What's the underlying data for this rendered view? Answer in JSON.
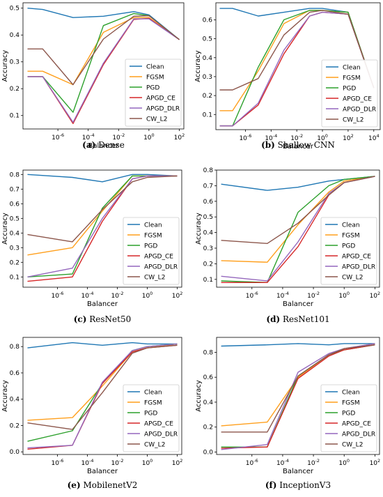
{
  "colors": {
    "Clean": "#1f77b4",
    "FGSM": "#ff9f1c",
    "PGD": "#2ca02c",
    "APGD_CE": "#d62728",
    "APGD_DLR": "#9467bd",
    "CW_L2": "#8c564b"
  },
  "chart_data": [
    {
      "type": "line",
      "caption_letter": "(a)",
      "caption_name": "Dense",
      "xlabel": "Balancer",
      "ylabel": "Accuracy",
      "x_scale": "log",
      "x": [
        1e-08,
        1e-07,
        1e-05,
        0.001,
        0.1,
        1.0,
        100.0
      ],
      "x_ticks": [
        "10^-6",
        "10^-4",
        "10^-2",
        "10^0",
        "10^2"
      ],
      "y_ticks": [
        "0.1",
        "0.2",
        "0.3",
        "0.4",
        "0.5"
      ],
      "ylim": [
        0.05,
        0.52
      ],
      "legend_position": "lower right",
      "series": [
        {
          "name": "Clean",
          "values": [
            0.5,
            0.495,
            0.465,
            0.47,
            0.487,
            0.475,
            0.383
          ]
        },
        {
          "name": "FGSM",
          "values": [
            0.265,
            0.265,
            0.215,
            0.41,
            0.465,
            0.465,
            0.383
          ]
        },
        {
          "name": "PGD",
          "values": [
            0.245,
            0.245,
            0.112,
            0.435,
            0.48,
            0.472,
            0.383
          ]
        },
        {
          "name": "APGD_CE",
          "values": [
            0.245,
            0.245,
            0.07,
            0.29,
            0.458,
            0.462,
            0.383
          ]
        },
        {
          "name": "APGD_DLR",
          "values": [
            0.245,
            0.245,
            0.075,
            0.295,
            0.46,
            0.46,
            0.383
          ]
        },
        {
          "name": "CW_L2",
          "values": [
            0.348,
            0.348,
            0.215,
            0.385,
            0.47,
            0.472,
            0.383
          ]
        }
      ]
    },
    {
      "type": "line",
      "caption_letter": "(b)",
      "caption_name": "Shallow CNN",
      "xlabel": "Balancer",
      "ylabel": "Accuracy",
      "x_scale": "log",
      "x": [
        1e-08,
        1e-07,
        1e-05,
        0.001,
        0.1,
        1.0,
        100.0,
        10000.0
      ],
      "x_ticks": [
        "10^-6",
        "10^-4",
        "10^-2",
        "10^0",
        "10^2",
        "10^4"
      ],
      "y_ticks": [
        "0.1",
        "0.2",
        "0.3",
        "0.4",
        "0.5",
        "0.6"
      ],
      "ylim": [
        0.02,
        0.69
      ],
      "legend_position": "lower right",
      "series": [
        {
          "name": "Clean",
          "values": [
            0.66,
            0.66,
            0.62,
            0.64,
            0.66,
            0.66,
            0.64,
            0.24
          ]
        },
        {
          "name": "FGSM",
          "values": [
            0.12,
            0.12,
            0.33,
            0.58,
            0.65,
            0.65,
            0.64,
            0.24
          ]
        },
        {
          "name": "PGD",
          "values": [
            0.04,
            0.04,
            0.35,
            0.6,
            0.65,
            0.65,
            0.64,
            0.24
          ]
        },
        {
          "name": "APGD_CE",
          "values": [
            0.04,
            0.04,
            0.15,
            0.42,
            0.62,
            0.64,
            0.63,
            0.24
          ]
        },
        {
          "name": "APGD_DLR",
          "values": [
            0.04,
            0.04,
            0.16,
            0.44,
            0.62,
            0.64,
            0.63,
            0.24
          ]
        },
        {
          "name": "CW_L2",
          "values": [
            0.23,
            0.23,
            0.29,
            0.52,
            0.64,
            0.65,
            0.63,
            0.24
          ]
        }
      ]
    },
    {
      "type": "line",
      "caption_letter": "(c)",
      "caption_name": "ResNet50",
      "xlabel": "Balancer",
      "ylabel": "Accuracy",
      "x_scale": "log",
      "x": [
        1e-08,
        1e-05,
        0.001,
        0.1,
        1.0,
        100.0
      ],
      "x_ticks": [
        "10^-6",
        "10^-4",
        "10^-2",
        "10^0",
        "10^2"
      ],
      "y_ticks": [
        "0.1",
        "0.2",
        "0.3",
        "0.4",
        "0.5",
        "0.6",
        "0.7",
        "0.8"
      ],
      "ylim": [
        0.03,
        0.83
      ],
      "legend_position": "lower right",
      "series": [
        {
          "name": "Clean",
          "values": [
            0.8,
            0.78,
            0.75,
            0.8,
            0.8,
            0.79
          ]
        },
        {
          "name": "FGSM",
          "values": [
            0.25,
            0.3,
            0.55,
            0.79,
            0.79,
            0.79
          ]
        },
        {
          "name": "PGD",
          "values": [
            0.1,
            0.12,
            0.57,
            0.79,
            0.79,
            0.79
          ]
        },
        {
          "name": "APGD_CE",
          "values": [
            0.07,
            0.1,
            0.48,
            0.77,
            0.79,
            0.79
          ]
        },
        {
          "name": "APGD_DLR",
          "values": [
            0.1,
            0.16,
            0.5,
            0.77,
            0.79,
            0.79
          ]
        },
        {
          "name": "CW_L2",
          "values": [
            0.39,
            0.34,
            0.56,
            0.75,
            0.78,
            0.79
          ]
        }
      ]
    },
    {
      "type": "line",
      "caption_letter": "(d)",
      "caption_name": "ResNet101",
      "xlabel": "Balancer",
      "ylabel": "Accuracy",
      "x_scale": "log",
      "x": [
        1e-08,
        1e-05,
        0.001,
        0.1,
        1.0,
        100.0
      ],
      "x_ticks": [
        "10^-6",
        "10^-4",
        "10^-2",
        "10^0",
        "10^2"
      ],
      "y_ticks": [
        "0.1",
        "0.2",
        "0.3",
        "0.4",
        "0.5",
        "0.6",
        "0.7",
        "0.8"
      ],
      "ylim": [
        0.05,
        0.8
      ],
      "legend_position": "lower right",
      "series": [
        {
          "name": "Clean",
          "values": [
            0.71,
            0.67,
            0.69,
            0.73,
            0.74,
            0.76
          ]
        },
        {
          "name": "FGSM",
          "values": [
            0.22,
            0.21,
            0.45,
            0.66,
            0.73,
            0.76
          ]
        },
        {
          "name": "PGD",
          "values": [
            0.09,
            0.08,
            0.53,
            0.7,
            0.74,
            0.76
          ]
        },
        {
          "name": "APGD_CE",
          "values": [
            0.08,
            0.08,
            0.31,
            0.64,
            0.72,
            0.76
          ]
        },
        {
          "name": "APGD_DLR",
          "values": [
            0.12,
            0.09,
            0.34,
            0.65,
            0.72,
            0.76
          ]
        },
        {
          "name": "CW_L2",
          "values": [
            0.35,
            0.33,
            0.46,
            0.64,
            0.72,
            0.76
          ]
        }
      ]
    },
    {
      "type": "line",
      "caption_letter": "(e)",
      "caption_name": "MobilenetV2",
      "xlabel": "Balancer",
      "ylabel": "Accuracy",
      "x_scale": "log",
      "x": [
        1e-08,
        1e-05,
        0.001,
        0.1,
        1.0,
        100.0
      ],
      "x_ticks": [
        "10^-6",
        "10^-4",
        "10^-2",
        "10^0",
        "10^2"
      ],
      "y_ticks": [
        "0.0",
        "0.2",
        "0.4",
        "0.6",
        "0.8"
      ],
      "ylim": [
        -0.02,
        0.87
      ],
      "legend_position": "lower right",
      "series": [
        {
          "name": "Clean",
          "values": [
            0.79,
            0.83,
            0.81,
            0.83,
            0.82,
            0.82
          ]
        },
        {
          "name": "FGSM",
          "values": [
            0.24,
            0.26,
            0.5,
            0.76,
            0.79,
            0.82
          ]
        },
        {
          "name": "PGD",
          "values": [
            0.08,
            0.16,
            0.52,
            0.77,
            0.8,
            0.82
          ]
        },
        {
          "name": "APGD_CE",
          "values": [
            0.02,
            0.05,
            0.52,
            0.76,
            0.79,
            0.81
          ]
        },
        {
          "name": "APGD_DLR",
          "values": [
            0.03,
            0.05,
            0.53,
            0.77,
            0.8,
            0.82
          ]
        },
        {
          "name": "CW_L2",
          "values": [
            0.22,
            0.17,
            0.45,
            0.75,
            0.79,
            0.81
          ]
        }
      ]
    },
    {
      "type": "line",
      "caption_letter": "(f)",
      "caption_name": "InceptionV3",
      "xlabel": "Balancer",
      "ylabel": "Accuracy",
      "x_scale": "log",
      "x": [
        1e-08,
        1e-05,
        0.001,
        0.1,
        1.0,
        100.0
      ],
      "x_ticks": [
        "10^-6",
        "10^-4",
        "10^-2",
        "10^0",
        "10^2"
      ],
      "y_ticks": [
        "0.0",
        "0.2",
        "0.4",
        "0.6",
        "0.8"
      ],
      "ylim": [
        -0.02,
        0.92
      ],
      "legend_position": "lower right",
      "series": [
        {
          "name": "Clean",
          "values": [
            0.85,
            0.86,
            0.87,
            0.86,
            0.87,
            0.87
          ]
        },
        {
          "name": "FGSM",
          "values": [
            0.21,
            0.24,
            0.6,
            0.78,
            0.83,
            0.87
          ]
        },
        {
          "name": "PGD",
          "values": [
            0.04,
            0.04,
            0.61,
            0.78,
            0.82,
            0.86
          ]
        },
        {
          "name": "APGD_CE",
          "values": [
            0.03,
            0.04,
            0.59,
            0.77,
            0.82,
            0.86
          ]
        },
        {
          "name": "APGD_DLR",
          "values": [
            0.02,
            0.06,
            0.64,
            0.79,
            0.83,
            0.87
          ]
        },
        {
          "name": "CW_L2",
          "values": [
            0.16,
            0.16,
            0.61,
            0.78,
            0.83,
            0.86
          ]
        }
      ]
    }
  ]
}
